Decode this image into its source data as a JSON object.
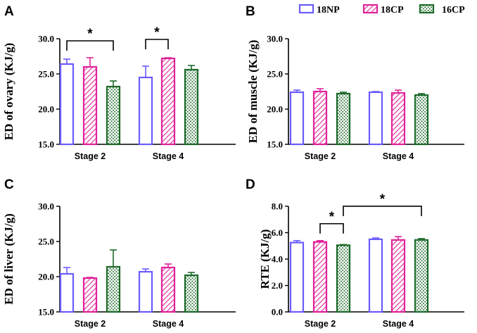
{
  "legend": {
    "items": [
      {
        "name": "18NP",
        "color": "#6a5cff",
        "pattern": "none"
      },
      {
        "name": "18CP",
        "color": "#e0229a",
        "pattern": "hatch"
      },
      {
        "name": "16CP",
        "color": "#1d6a2a",
        "pattern": "dots"
      }
    ]
  },
  "chart_data": [
    {
      "type": "bar",
      "panel": "A",
      "ylabel": "ED of ovary (KJ/g)",
      "categories": [
        "Stage 2",
        "Stage 4"
      ],
      "ylim": [
        15,
        30
      ],
      "yticks": [
        15,
        20,
        25,
        30
      ],
      "ytick_labels": [
        "15.0",
        "20.0",
        "25.0",
        "30.0"
      ],
      "series": [
        {
          "name": "18NP",
          "values": [
            26.4,
            24.5
          ],
          "errors": [
            0.7,
            1.6
          ]
        },
        {
          "name": "18CP",
          "values": [
            26.0,
            27.2
          ],
          "errors": [
            1.3,
            0.1
          ]
        },
        {
          "name": "16CP",
          "values": [
            23.2,
            25.6
          ],
          "errors": [
            0.8,
            0.6
          ]
        }
      ],
      "significance": [
        {
          "from": [
            0,
            0
          ],
          "to": [
            0,
            2
          ],
          "label": "*"
        },
        {
          "from": [
            1,
            0
          ],
          "to": [
            1,
            1
          ],
          "label": "*"
        }
      ]
    },
    {
      "type": "bar",
      "panel": "B",
      "ylabel": "ED of muscle (KJ/g)",
      "categories": [
        "Stage 2",
        "Stage 4"
      ],
      "ylim": [
        15,
        30
      ],
      "yticks": [
        15,
        20,
        25,
        30
      ],
      "ytick_labels": [
        "15.0",
        "20.0",
        "25.0",
        "30.0"
      ],
      "series": [
        {
          "name": "18NP",
          "values": [
            22.4,
            22.4
          ],
          "errors": [
            0.3,
            0.1
          ]
        },
        {
          "name": "18CP",
          "values": [
            22.5,
            22.3
          ],
          "errors": [
            0.4,
            0.4
          ]
        },
        {
          "name": "16CP",
          "values": [
            22.2,
            22.0
          ],
          "errors": [
            0.2,
            0.2
          ]
        }
      ],
      "significance": []
    },
    {
      "type": "bar",
      "panel": "C",
      "ylabel": "ED of liver (KJ/g)",
      "categories": [
        "Stage 2",
        "Stage 4"
      ],
      "ylim": [
        15,
        30
      ],
      "yticks": [
        15,
        20,
        25,
        30
      ],
      "ytick_labels": [
        "15.0",
        "20.0",
        "25.0",
        "30.0"
      ],
      "series": [
        {
          "name": "18NP",
          "values": [
            20.4,
            20.7
          ],
          "errors": [
            0.9,
            0.4
          ]
        },
        {
          "name": "18CP",
          "values": [
            19.8,
            21.3
          ],
          "errors": [
            0.1,
            0.5
          ]
        },
        {
          "name": "16CP",
          "values": [
            21.4,
            20.2
          ],
          "errors": [
            2.4,
            0.4
          ]
        }
      ],
      "significance": []
    },
    {
      "type": "bar",
      "panel": "D",
      "ylabel": "RTE (KJ/g)",
      "categories": [
        "Stage 2",
        "Stage 4"
      ],
      "ylim": [
        0,
        8
      ],
      "yticks": [
        0,
        2,
        4,
        6,
        8
      ],
      "ytick_labels": [
        "0.0",
        "2.0",
        "4.0",
        "6.0",
        "8.0"
      ],
      "series": [
        {
          "name": "18NP",
          "values": [
            5.25,
            5.5
          ],
          "errors": [
            0.15,
            0.1
          ]
        },
        {
          "name": "18CP",
          "values": [
            5.3,
            5.45
          ],
          "errors": [
            0.1,
            0.25
          ]
        },
        {
          "name": "16CP",
          "values": [
            5.05,
            5.45
          ],
          "errors": [
            0.05,
            0.1
          ]
        }
      ],
      "significance": [
        {
          "from": [
            0,
            1
          ],
          "to": [
            0,
            2
          ],
          "label": "*"
        },
        {
          "from": [
            0,
            2
          ],
          "to": [
            1,
            2
          ],
          "label": "*"
        }
      ]
    }
  ]
}
